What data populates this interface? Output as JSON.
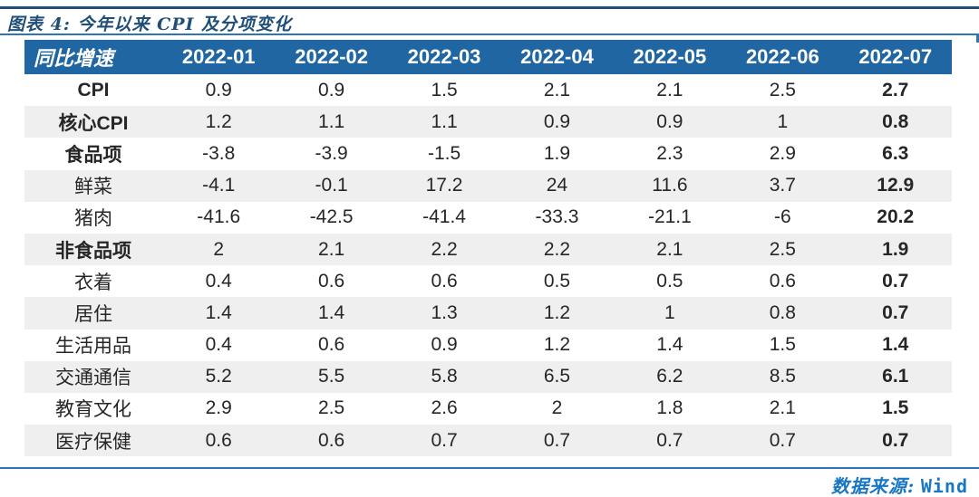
{
  "caption": "图表 4: 今年以来 CPI 及分项变化",
  "footer": {
    "source_label": "数据来源:",
    "source_value": "Wind"
  },
  "colors": {
    "header_bg": "#2066A2",
    "header_text": "#FFFFFF",
    "zebra_row": "#EFEFEF",
    "caption_blue": "#1F4E79",
    "rule_blue": "#2E75B6",
    "footer_blue": "#1877C5",
    "body_text": "#262626"
  },
  "table": {
    "header": [
      "同比增速",
      "2022-01",
      "2022-02",
      "2022-03",
      "2022-04",
      "2022-05",
      "2022-06",
      "2022-07"
    ],
    "rows": [
      {
        "label": "CPI",
        "bold": true,
        "values": [
          "0.9",
          "0.9",
          "1.5",
          "2.1",
          "2.1",
          "2.5",
          "2.7"
        ]
      },
      {
        "label": "核心CPI",
        "bold": true,
        "values": [
          "1.2",
          "1.1",
          "1.1",
          "0.9",
          "0.9",
          "1",
          "0.8"
        ]
      },
      {
        "label": "食品项",
        "bold": true,
        "values": [
          "-3.8",
          "-3.9",
          "-1.5",
          "1.9",
          "2.3",
          "2.9",
          "6.3"
        ]
      },
      {
        "label": "鲜菜",
        "bold": false,
        "values": [
          "-4.1",
          "-0.1",
          "17.2",
          "24",
          "11.6",
          "3.7",
          "12.9"
        ]
      },
      {
        "label": "猪肉",
        "bold": false,
        "values": [
          "-41.6",
          "-42.5",
          "-41.4",
          "-33.3",
          "-21.1",
          "-6",
          "20.2"
        ]
      },
      {
        "label": "非食品项",
        "bold": true,
        "values": [
          "2",
          "2.1",
          "2.2",
          "2.2",
          "2.1",
          "2.5",
          "1.9"
        ]
      },
      {
        "label": "衣着",
        "bold": false,
        "values": [
          "0.4",
          "0.6",
          "0.6",
          "0.5",
          "0.5",
          "0.6",
          "0.7"
        ]
      },
      {
        "label": "居住",
        "bold": false,
        "values": [
          "1.4",
          "1.4",
          "1.3",
          "1.2",
          "1",
          "0.8",
          "0.7"
        ]
      },
      {
        "label": "生活用品",
        "bold": false,
        "values": [
          "0.4",
          "0.6",
          "0.9",
          "1.2",
          "1.4",
          "1.5",
          "1.4"
        ]
      },
      {
        "label": "交通通信",
        "bold": false,
        "values": [
          "5.2",
          "5.5",
          "5.8",
          "6.5",
          "6.2",
          "8.5",
          "6.1"
        ]
      },
      {
        "label": "教育文化",
        "bold": false,
        "values": [
          "2.9",
          "2.5",
          "2.6",
          "2",
          "1.8",
          "2.1",
          "1.5"
        ]
      },
      {
        "label": "医疗保健",
        "bold": false,
        "values": [
          "0.6",
          "0.6",
          "0.7",
          "0.7",
          "0.7",
          "0.7",
          "0.7"
        ]
      }
    ]
  },
  "chart_data": {
    "type": "table",
    "title": "图表 4: 今年以来 CPI 及分项变化",
    "columns": [
      "同比增速",
      "2022-01",
      "2022-02",
      "2022-03",
      "2022-04",
      "2022-05",
      "2022-06",
      "2022-07"
    ],
    "series": [
      {
        "name": "CPI",
        "values": [
          0.9,
          0.9,
          1.5,
          2.1,
          2.1,
          2.5,
          2.7
        ]
      },
      {
        "name": "核心CPI",
        "values": [
          1.2,
          1.1,
          1.1,
          0.9,
          0.9,
          1,
          0.8
        ]
      },
      {
        "name": "食品项",
        "values": [
          -3.8,
          -3.9,
          -1.5,
          1.9,
          2.3,
          2.9,
          6.3
        ]
      },
      {
        "name": "鲜菜",
        "values": [
          -4.1,
          -0.1,
          17.2,
          24,
          11.6,
          3.7,
          12.9
        ]
      },
      {
        "name": "猪肉",
        "values": [
          -41.6,
          -42.5,
          -41.4,
          -33.3,
          -21.1,
          -6,
          20.2
        ]
      },
      {
        "name": "非食品项",
        "values": [
          2,
          2.1,
          2.2,
          2.2,
          2.1,
          2.5,
          1.9
        ]
      },
      {
        "name": "衣着",
        "values": [
          0.4,
          0.6,
          0.6,
          0.5,
          0.5,
          0.6,
          0.7
        ]
      },
      {
        "name": "居住",
        "values": [
          1.4,
          1.4,
          1.3,
          1.2,
          1,
          0.8,
          0.7
        ]
      },
      {
        "name": "生活用品",
        "values": [
          0.4,
          0.6,
          0.9,
          1.2,
          1.4,
          1.5,
          1.4
        ]
      },
      {
        "name": "交通通信",
        "values": [
          5.2,
          5.5,
          5.8,
          6.5,
          6.2,
          8.5,
          6.1
        ]
      },
      {
        "name": "教育文化",
        "values": [
          2.9,
          2.5,
          2.6,
          2,
          1.8,
          2.1,
          1.5
        ]
      },
      {
        "name": "医疗保健",
        "values": [
          0.6,
          0.6,
          0.7,
          0.7,
          0.7,
          0.7,
          0.7
        ]
      }
    ],
    "source": "数据来源: Wind",
    "unit": "percent YoY"
  }
}
